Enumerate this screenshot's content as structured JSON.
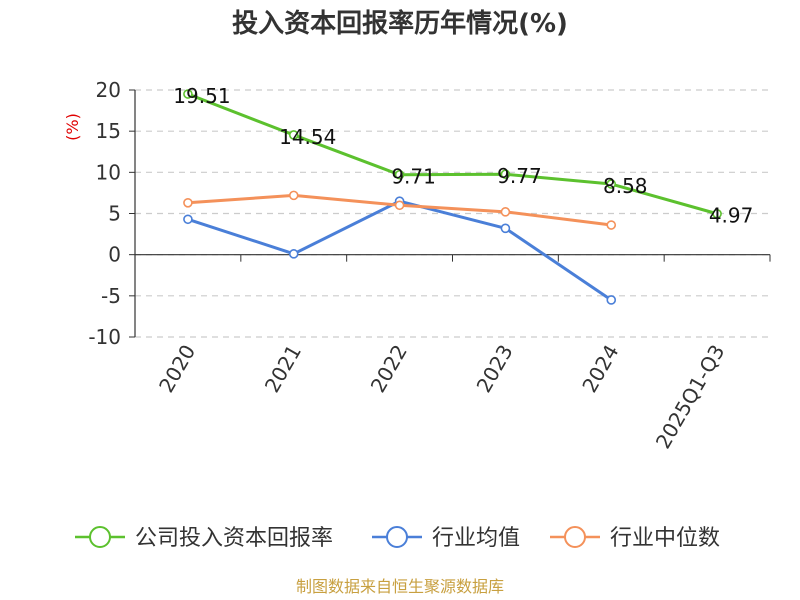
{
  "chart_data": {
    "type": "line",
    "title": "投入资本回报率历年情况(%)",
    "unit_label": "(%)",
    "categories": [
      "2020",
      "2021",
      "2022",
      "2023",
      "2024",
      "2025Q1-Q3"
    ],
    "ylim": [
      -10,
      20
    ],
    "yticks": [
      20,
      15,
      10,
      5,
      0,
      -5,
      -10
    ],
    "grid": true,
    "legend_position": "bottom",
    "series": [
      {
        "name": "公司投入资本回报率",
        "color": "#5cc12e",
        "values": [
          19.51,
          14.54,
          9.71,
          9.77,
          8.58,
          4.97
        ],
        "labels": [
          "19.51",
          "14.54",
          "9.71",
          "9.77",
          "8.58",
          "4.97"
        ]
      },
      {
        "name": "行业均值",
        "color": "#4a7fd8",
        "values": [
          4.3,
          0.1,
          6.5,
          3.2,
          -5.5,
          null
        ]
      },
      {
        "name": "行业中位数",
        "color": "#f4915a",
        "values": [
          6.3,
          7.2,
          6.0,
          5.2,
          3.6,
          null
        ]
      }
    ],
    "source": "制图数据来自恒生聚源数据库"
  }
}
